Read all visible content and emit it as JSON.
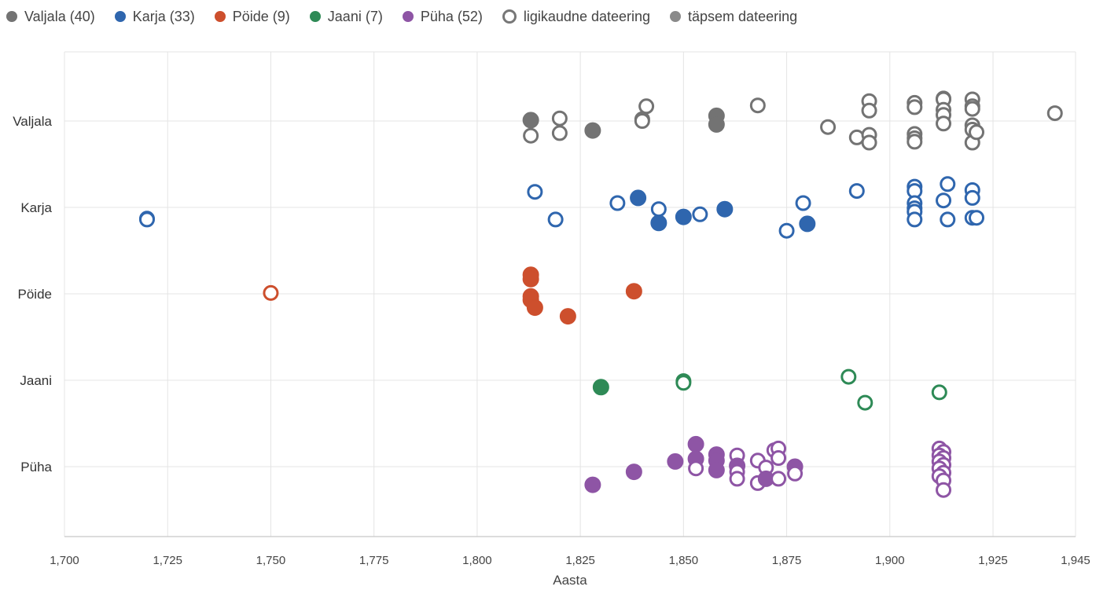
{
  "legend": {
    "series": [
      {
        "label": "Valjala (40)",
        "color": "#737373"
      },
      {
        "label": "Karja (33)",
        "color": "#2f66ae"
      },
      {
        "label": "Pöide (9)",
        "color": "#cd4f2d"
      },
      {
        "label": "Jaani (7)",
        "color": "#2e8a56"
      },
      {
        "label": "Püha (52)",
        "color": "#8e55a5"
      }
    ],
    "open_label": "ligikaudne dateering",
    "filled_label": "täpsem dateering"
  },
  "chart_data": {
    "type": "scatter",
    "xlabel": "Aasta",
    "ylabel": "",
    "xlim": [
      1700,
      1945
    ],
    "x_ticks": [
      1700,
      1725,
      1750,
      1775,
      1800,
      1825,
      1850,
      1875,
      1900,
      1925,
      1945
    ],
    "x_tick_labels": [
      "1,700",
      "1,725",
      "1,750",
      "1,775",
      "1,800",
      "1,825",
      "1,850",
      "1,875",
      "1,900",
      "1,925",
      "1,945"
    ],
    "categories": [
      "Valjala",
      "Karja",
      "Pöide",
      "Jaani",
      "Püha"
    ],
    "grid": true,
    "legend_position": "top",
    "marker_note": "y offsets are jitter within each category band (-0.5..0.5)",
    "series": [
      {
        "name": "Valjala",
        "color": "#737373",
        "points": [
          {
            "x": 1813,
            "dy": 0.01,
            "filled": true
          },
          {
            "x": 1813,
            "dy": -0.17,
            "filled": false
          },
          {
            "x": 1820,
            "dy": 0.03,
            "filled": false
          },
          {
            "x": 1820,
            "dy": -0.14,
            "filled": false
          },
          {
            "x": 1828,
            "dy": -0.11,
            "filled": true
          },
          {
            "x": 1840,
            "dy": 0.02,
            "filled": false
          },
          {
            "x": 1840,
            "dy": 0.0,
            "filled": false
          },
          {
            "x": 1841,
            "dy": 0.17,
            "filled": false
          },
          {
            "x": 1858,
            "dy": 0.06,
            "filled": true
          },
          {
            "x": 1858,
            "dy": -0.04,
            "filled": true
          },
          {
            "x": 1868,
            "dy": 0.18,
            "filled": false
          },
          {
            "x": 1885,
            "dy": -0.07,
            "filled": false
          },
          {
            "x": 1892,
            "dy": -0.19,
            "filled": false
          },
          {
            "x": 1895,
            "dy": 0.23,
            "filled": false
          },
          {
            "x": 1895,
            "dy": 0.12,
            "filled": false
          },
          {
            "x": 1895,
            "dy": -0.16,
            "filled": false
          },
          {
            "x": 1895,
            "dy": -0.25,
            "filled": false
          },
          {
            "x": 1906,
            "dy": 0.21,
            "filled": false
          },
          {
            "x": 1906,
            "dy": 0.16,
            "filled": false
          },
          {
            "x": 1906,
            "dy": -0.15,
            "filled": false
          },
          {
            "x": 1906,
            "dy": -0.2,
            "filled": false
          },
          {
            "x": 1906,
            "dy": -0.24,
            "filled": false
          },
          {
            "x": 1913,
            "dy": 0.26,
            "filled": false
          },
          {
            "x": 1913,
            "dy": 0.25,
            "filled": false
          },
          {
            "x": 1913,
            "dy": 0.13,
            "filled": false
          },
          {
            "x": 1913,
            "dy": 0.07,
            "filled": false
          },
          {
            "x": 1913,
            "dy": -0.03,
            "filled": false
          },
          {
            "x": 1920,
            "dy": 0.25,
            "filled": false
          },
          {
            "x": 1920,
            "dy": 0.17,
            "filled": false
          },
          {
            "x": 1920,
            "dy": 0.14,
            "filled": false
          },
          {
            "x": 1920,
            "dy": -0.05,
            "filled": false
          },
          {
            "x": 1920,
            "dy": -0.1,
            "filled": false
          },
          {
            "x": 1920,
            "dy": -0.25,
            "filled": false
          },
          {
            "x": 1921,
            "dy": -0.13,
            "filled": false
          },
          {
            "x": 1940,
            "dy": 0.09,
            "filled": false
          }
        ]
      },
      {
        "name": "Karja",
        "color": "#2f66ae",
        "points": [
          {
            "x": 1720,
            "dy": -0.13,
            "filled": false
          },
          {
            "x": 1720,
            "dy": -0.14,
            "filled": false
          },
          {
            "x": 1814,
            "dy": 0.18,
            "filled": false
          },
          {
            "x": 1819,
            "dy": -0.14,
            "filled": false
          },
          {
            "x": 1834,
            "dy": 0.05,
            "filled": false
          },
          {
            "x": 1839,
            "dy": 0.11,
            "filled": true
          },
          {
            "x": 1844,
            "dy": -0.02,
            "filled": false
          },
          {
            "x": 1844,
            "dy": -0.18,
            "filled": true
          },
          {
            "x": 1850,
            "dy": -0.11,
            "filled": true
          },
          {
            "x": 1854,
            "dy": -0.08,
            "filled": false
          },
          {
            "x": 1860,
            "dy": -0.02,
            "filled": true
          },
          {
            "x": 1875,
            "dy": -0.27,
            "filled": false
          },
          {
            "x": 1879,
            "dy": 0.05,
            "filled": false
          },
          {
            "x": 1880,
            "dy": -0.19,
            "filled": true
          },
          {
            "x": 1892,
            "dy": 0.19,
            "filled": false
          },
          {
            "x": 1906,
            "dy": 0.24,
            "filled": false
          },
          {
            "x": 1906,
            "dy": 0.19,
            "filled": false
          },
          {
            "x": 1906,
            "dy": 0.05,
            "filled": false
          },
          {
            "x": 1906,
            "dy": -0.01,
            "filled": false
          },
          {
            "x": 1906,
            "dy": -0.05,
            "filled": false
          },
          {
            "x": 1906,
            "dy": -0.14,
            "filled": false
          },
          {
            "x": 1913,
            "dy": 0.08,
            "filled": false
          },
          {
            "x": 1914,
            "dy": 0.27,
            "filled": false
          },
          {
            "x": 1914,
            "dy": -0.14,
            "filled": false
          },
          {
            "x": 1920,
            "dy": 0.2,
            "filled": false
          },
          {
            "x": 1920,
            "dy": 0.11,
            "filled": false
          },
          {
            "x": 1920,
            "dy": -0.12,
            "filled": false
          },
          {
            "x": 1921,
            "dy": -0.12,
            "filled": false
          }
        ]
      },
      {
        "name": "Pöide",
        "color": "#cd4f2d",
        "points": [
          {
            "x": 1750,
            "dy": 0.01,
            "filled": false
          },
          {
            "x": 1813,
            "dy": 0.22,
            "filled": true
          },
          {
            "x": 1813,
            "dy": 0.17,
            "filled": true
          },
          {
            "x": 1813,
            "dy": -0.03,
            "filled": true
          },
          {
            "x": 1813,
            "dy": -0.07,
            "filled": true
          },
          {
            "x": 1814,
            "dy": -0.16,
            "filled": true
          },
          {
            "x": 1822,
            "dy": -0.26,
            "filled": true
          },
          {
            "x": 1838,
            "dy": 0.03,
            "filled": true
          }
        ]
      },
      {
        "name": "Jaani",
        "color": "#2e8a56",
        "points": [
          {
            "x": 1830,
            "dy": -0.08,
            "filled": true
          },
          {
            "x": 1850,
            "dy": -0.01,
            "filled": false
          },
          {
            "x": 1850,
            "dy": -0.03,
            "filled": false
          },
          {
            "x": 1890,
            "dy": 0.04,
            "filled": false
          },
          {
            "x": 1894,
            "dy": -0.26,
            "filled": false
          },
          {
            "x": 1912,
            "dy": -0.14,
            "filled": false
          }
        ]
      },
      {
        "name": "Püha",
        "color": "#8e55a5",
        "points": [
          {
            "x": 1828,
            "dy": -0.21,
            "filled": true
          },
          {
            "x": 1838,
            "dy": -0.06,
            "filled": true
          },
          {
            "x": 1848,
            "dy": 0.06,
            "filled": true
          },
          {
            "x": 1853,
            "dy": 0.26,
            "filled": true
          },
          {
            "x": 1853,
            "dy": 0.09,
            "filled": true
          },
          {
            "x": 1853,
            "dy": -0.02,
            "filled": false
          },
          {
            "x": 1858,
            "dy": 0.14,
            "filled": true
          },
          {
            "x": 1858,
            "dy": 0.07,
            "filled": true
          },
          {
            "x": 1858,
            "dy": -0.04,
            "filled": true
          },
          {
            "x": 1863,
            "dy": 0.13,
            "filled": false
          },
          {
            "x": 1863,
            "dy": 0.01,
            "filled": true
          },
          {
            "x": 1863,
            "dy": -0.06,
            "filled": false
          },
          {
            "x": 1863,
            "dy": -0.14,
            "filled": false
          },
          {
            "x": 1868,
            "dy": 0.07,
            "filled": false
          },
          {
            "x": 1868,
            "dy": -0.19,
            "filled": false
          },
          {
            "x": 1870,
            "dy": -0.01,
            "filled": false
          },
          {
            "x": 1870,
            "dy": -0.14,
            "filled": true
          },
          {
            "x": 1872,
            "dy": 0.19,
            "filled": false
          },
          {
            "x": 1873,
            "dy": 0.21,
            "filled": false
          },
          {
            "x": 1873,
            "dy": 0.1,
            "filled": false
          },
          {
            "x": 1873,
            "dy": -0.14,
            "filled": false
          },
          {
            "x": 1877,
            "dy": 0.0,
            "filled": true
          },
          {
            "x": 1877,
            "dy": -0.08,
            "filled": false
          },
          {
            "x": 1912,
            "dy": 0.21,
            "filled": false
          },
          {
            "x": 1913,
            "dy": 0.17,
            "filled": false
          },
          {
            "x": 1912,
            "dy": 0.13,
            "filled": false
          },
          {
            "x": 1913,
            "dy": 0.1,
            "filled": false
          },
          {
            "x": 1912,
            "dy": 0.06,
            "filled": false
          },
          {
            "x": 1913,
            "dy": 0.02,
            "filled": false
          },
          {
            "x": 1912,
            "dy": -0.02,
            "filled": false
          },
          {
            "x": 1913,
            "dy": -0.07,
            "filled": false
          },
          {
            "x": 1912,
            "dy": -0.11,
            "filled": false
          },
          {
            "x": 1913,
            "dy": -0.16,
            "filled": false
          },
          {
            "x": 1913,
            "dy": -0.27,
            "filled": false
          }
        ]
      }
    ]
  }
}
